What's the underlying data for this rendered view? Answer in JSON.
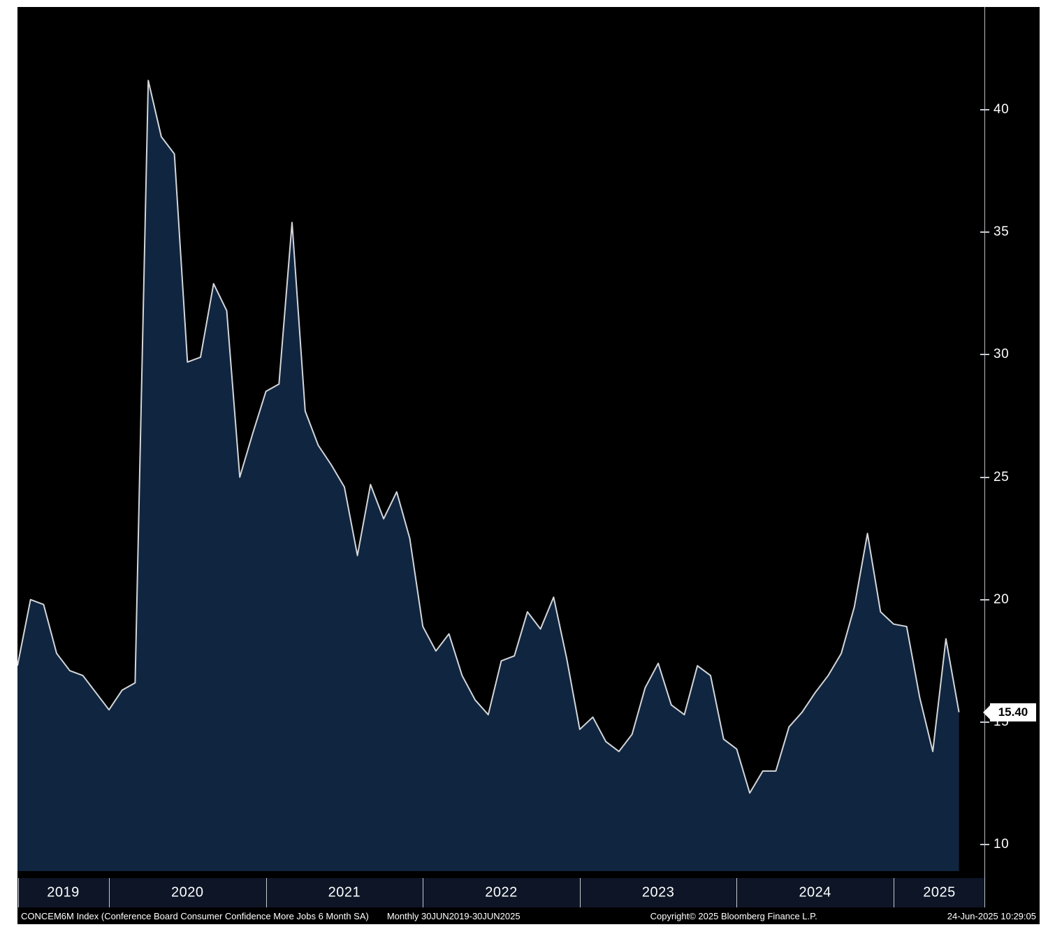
{
  "chart_data": {
    "type": "area",
    "title": "Conference Board Consumer Confidence More Jobs 6 Month SA",
    "ticker": "CONCEM6M Index",
    "frequency": "Monthly",
    "x_range": [
      "30JUN2019",
      "30JUN2025"
    ],
    "start_month": 6,
    "x_year_labels": [
      "2019",
      "2020",
      "2021",
      "2022",
      "2023",
      "2024",
      "2025"
    ],
    "y_ticks": [
      10,
      15,
      20,
      25,
      30,
      35,
      40
    ],
    "ylim": [
      8.8,
      44.2
    ],
    "grid": false,
    "legend_position": "none",
    "last_value": "15.40",
    "line_color": "#d4d6d9",
    "fill_color": "#102540",
    "background": "#000000",
    "series": [
      {
        "name": "CONCEM6M Index",
        "values": [
          17.3,
          20.0,
          19.8,
          17.8,
          17.1,
          16.9,
          16.2,
          15.5,
          16.3,
          16.6,
          41.2,
          38.9,
          38.2,
          29.7,
          29.9,
          32.9,
          31.8,
          25.0,
          26.8,
          28.5,
          28.8,
          35.4,
          27.7,
          26.3,
          25.5,
          24.6,
          21.8,
          24.7,
          23.3,
          24.4,
          22.5,
          18.9,
          17.9,
          18.6,
          16.9,
          15.9,
          15.3,
          17.5,
          17.7,
          19.5,
          18.8,
          20.1,
          17.6,
          14.7,
          15.2,
          14.2,
          13.8,
          14.5,
          16.4,
          17.4,
          15.7,
          15.3,
          17.3,
          16.9,
          14.3,
          13.9,
          12.1,
          13.0,
          13.0,
          14.8,
          15.4,
          16.2,
          16.9,
          17.8,
          19.7,
          22.7,
          19.5,
          19.0,
          18.9,
          16.0,
          13.8,
          18.4,
          15.4
        ]
      }
    ]
  },
  "footer": {
    "description": "CONCEM6M Index (Conference Board Consumer Confidence More Jobs 6 Month SA)",
    "range": "Monthly 30JUN2019-30JUN2025",
    "copyright": "Copyright© 2025 Bloomberg Finance L.P.",
    "timestamp": "24-Jun-2025 10:29:05"
  }
}
